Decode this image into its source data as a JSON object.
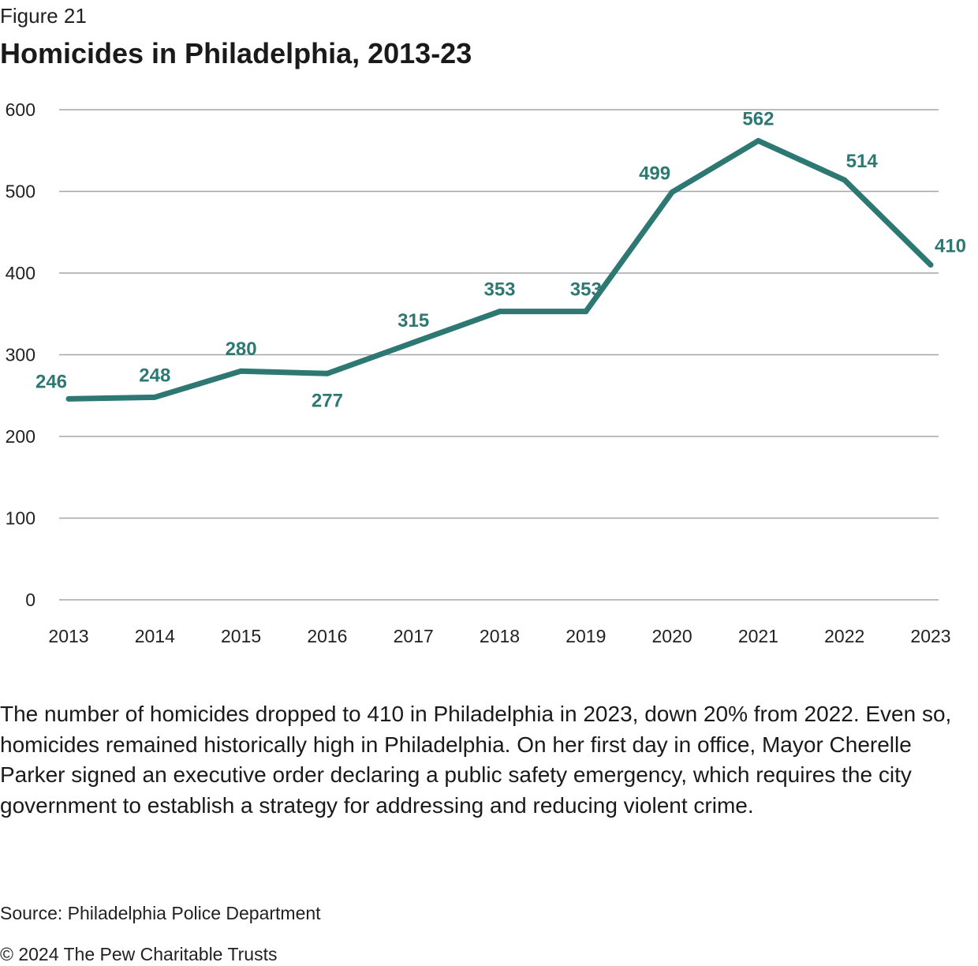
{
  "figure": {
    "label": "Figure 21",
    "title": "Homicides in Philadelphia, 2013-23"
  },
  "colors": {
    "line": "#2e7874",
    "grid": "#a6a6a6",
    "text": "#222222"
  },
  "chart_data": {
    "type": "line",
    "title": "Homicides in Philadelphia, 2013-23",
    "xlabel": "",
    "ylabel": "",
    "categories": [
      "2013",
      "2014",
      "2015",
      "2016",
      "2017",
      "2018",
      "2019",
      "2020",
      "2021",
      "2022",
      "2023"
    ],
    "series": [
      {
        "name": "Homicides",
        "values": [
          246,
          248,
          280,
          277,
          315,
          353,
          353,
          499,
          562,
          514,
          410
        ],
        "labels": [
          "246",
          "248",
          "280",
          "277",
          "315",
          "353",
          "353",
          "499",
          "562",
          "514",
          "410"
        ]
      }
    ],
    "ylim": [
      0,
      600
    ],
    "yticks": [
      "0",
      "100",
      "200",
      "300",
      "400",
      "500",
      "600"
    ],
    "grid": true,
    "legend": "none"
  },
  "caption": "The number of homicides dropped to 410 in Philadelphia in 2023, down 20% from 2022. Even so, homicides remained historically high in Philadelphia. On her first day in office, Mayor Cherelle Parker signed an executive order declaring a public safety emergency, which requires the city government to establish a strategy for addressing and reducing violent crime.",
  "source": "Source: Philadelphia Police Department",
  "copyright": "© 2024 The Pew Charitable Trusts"
}
